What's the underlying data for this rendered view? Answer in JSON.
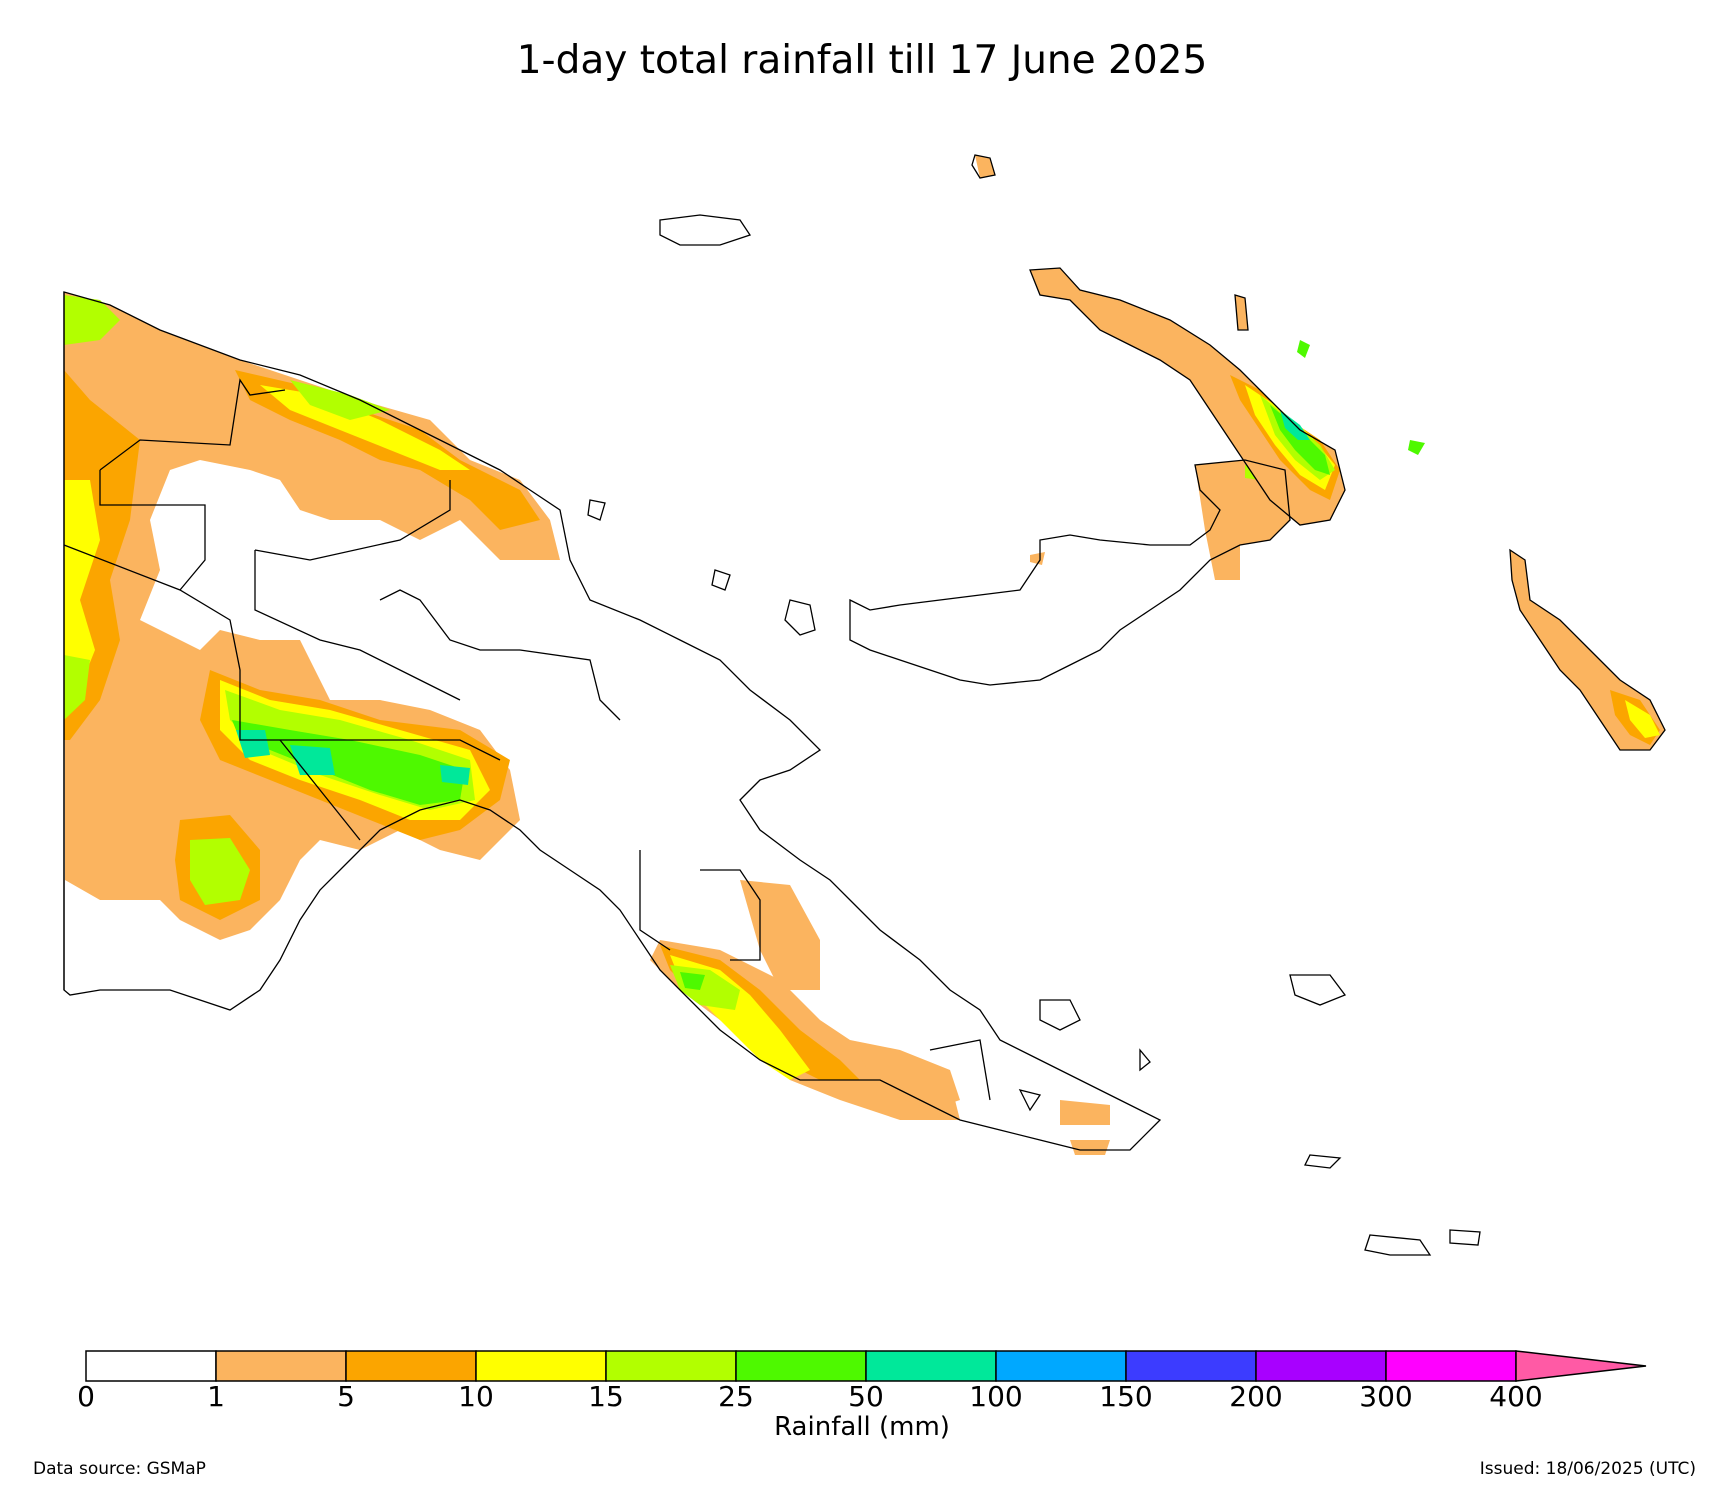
{
  "title": "1-day total rainfall till 17 June 2025",
  "colorbar": {
    "label": "Rainfall (mm)",
    "ticks": [
      "0",
      "1",
      "5",
      "10",
      "15",
      "25",
      "50",
      "100",
      "150",
      "200",
      "300",
      "400"
    ],
    "colors": [
      "#ffffff",
      "#fbb45f",
      "#fba500",
      "#ffff00",
      "#b2ff00",
      "#4ef900",
      "#00e89a",
      "#00a8ff",
      "#3c3cff",
      "#a800ff",
      "#ff00ff"
    ],
    "extend_color": "#ff5aa5"
  },
  "footer": {
    "source": "Data source: GSMaP",
    "issued": "Issued: 18/06/2025 (UTC)"
  },
  "map": {
    "region": "Papua New Guinea",
    "colors": {
      "light_orange": "#fbb45f",
      "orange": "#fba500",
      "yellow": "#ffff00",
      "yellow_green": "#b2ff00",
      "green": "#4ef900",
      "teal": "#00e89a"
    }
  }
}
